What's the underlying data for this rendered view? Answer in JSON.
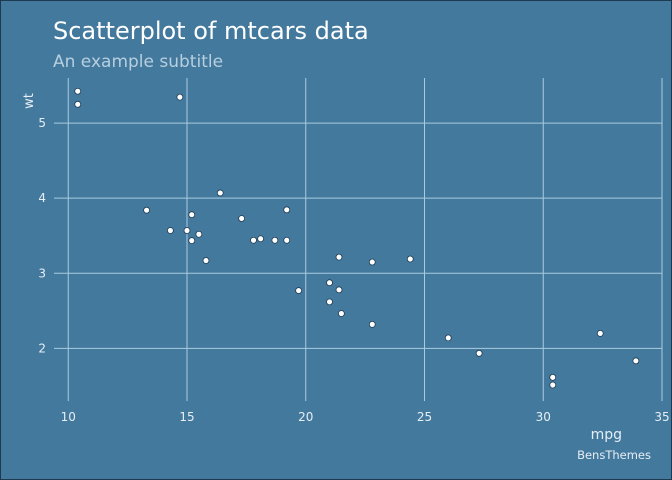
{
  "chart_data": {
    "type": "scatter",
    "title": "Scatterplot of mtcars data",
    "subtitle": "An example subtitle",
    "xlabel": "mpg",
    "ylabel": "wt",
    "caption": "BensThemes",
    "xlim": [
      9.4,
      35.0
    ],
    "ylim": [
      1.3,
      5.6
    ],
    "xticks": [
      10,
      15,
      20,
      25,
      30,
      35
    ],
    "yticks": [
      2,
      3,
      4,
      5
    ],
    "grid": true,
    "legend": "none",
    "colors": {
      "background": "#44799e",
      "grid": "#a9cce0",
      "point_fill": "#ffffff",
      "point_stroke": "#1e3a50",
      "title": "#ffffff",
      "subtitle": "#b7cfdf",
      "axis_text": "#e6eef4"
    },
    "points": [
      {
        "x": 21.0,
        "y": 2.62
      },
      {
        "x": 21.0,
        "y": 2.875
      },
      {
        "x": 22.8,
        "y": 2.32
      },
      {
        "x": 21.4,
        "y": 3.215
      },
      {
        "x": 18.7,
        "y": 3.44
      },
      {
        "x": 18.1,
        "y": 3.46
      },
      {
        "x": 14.3,
        "y": 3.57
      },
      {
        "x": 24.4,
        "y": 3.19
      },
      {
        "x": 22.8,
        "y": 3.15
      },
      {
        "x": 19.2,
        "y": 3.44
      },
      {
        "x": 17.8,
        "y": 3.44
      },
      {
        "x": 16.4,
        "y": 4.07
      },
      {
        "x": 17.3,
        "y": 3.73
      },
      {
        "x": 15.2,
        "y": 3.78
      },
      {
        "x": 10.4,
        "y": 5.25
      },
      {
        "x": 10.4,
        "y": 5.424
      },
      {
        "x": 14.7,
        "y": 5.345
      },
      {
        "x": 32.4,
        "y": 2.2
      },
      {
        "x": 30.4,
        "y": 1.615
      },
      {
        "x": 33.9,
        "y": 1.835
      },
      {
        "x": 21.5,
        "y": 2.465
      },
      {
        "x": 15.5,
        "y": 3.52
      },
      {
        "x": 15.2,
        "y": 3.435
      },
      {
        "x": 13.3,
        "y": 3.84
      },
      {
        "x": 19.2,
        "y": 3.845
      },
      {
        "x": 27.3,
        "y": 1.935
      },
      {
        "x": 26.0,
        "y": 2.14
      },
      {
        "x": 30.4,
        "y": 1.513
      },
      {
        "x": 15.8,
        "y": 3.17
      },
      {
        "x": 19.7,
        "y": 2.77
      },
      {
        "x": 15.0,
        "y": 3.57
      },
      {
        "x": 21.4,
        "y": 2.78
      }
    ]
  }
}
